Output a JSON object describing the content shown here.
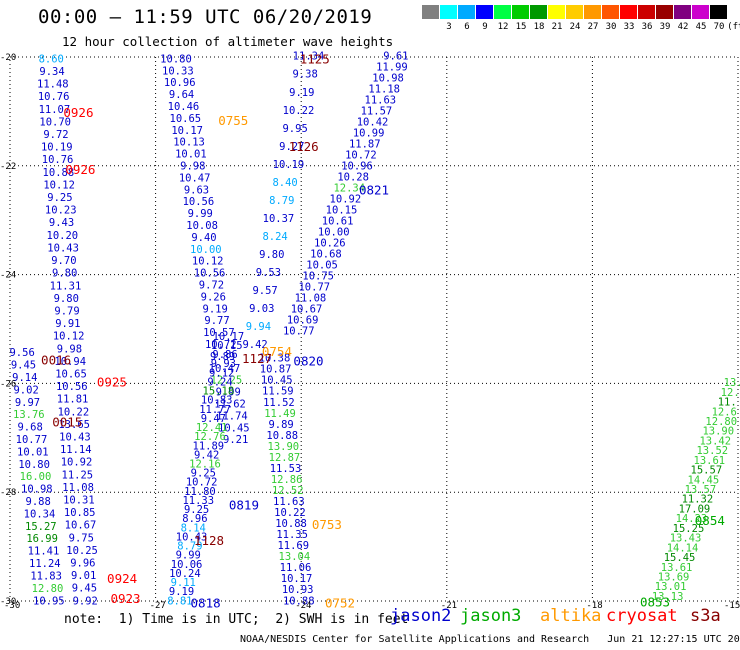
{
  "header": {
    "title": "00:00 – 11:59 UTC 06/20/2019",
    "subtitle": "12 hour collection of altimeter wave heights"
  },
  "color_scale": {
    "unit_label": "(ft)",
    "bins": [
      {
        "label": "",
        "color": "#808080"
      },
      {
        "label": "3",
        "color": "#00ffff"
      },
      {
        "label": "6",
        "color": "#00aaff"
      },
      {
        "label": "9",
        "color": "#0000ff"
      },
      {
        "label": "12",
        "color": "#00ff44"
      },
      {
        "label": "15",
        "color": "#00cc00"
      },
      {
        "label": "18",
        "color": "#009900"
      },
      {
        "label": "21",
        "color": "#ffff00"
      },
      {
        "label": "24",
        "color": "#ffcc00"
      },
      {
        "label": "27",
        "color": "#ff9900"
      },
      {
        "label": "30",
        "color": "#ff5500"
      },
      {
        "label": "33",
        "color": "#ff0000"
      },
      {
        "label": "36",
        "color": "#cc0000"
      },
      {
        "label": "39",
        "color": "#990000"
      },
      {
        "label": "42",
        "color": "#800080"
      },
      {
        "label": "45",
        "color": "#cc00cc"
      },
      {
        "label": "70",
        "color": "#000000"
      }
    ]
  },
  "axes": {
    "lat_labels": [
      "-20",
      "-22",
      "-24",
      "-26",
      "-28",
      "-30"
    ],
    "lon_labels": [
      "-30",
      "-27",
      "-24",
      "-21",
      "-18",
      "-15"
    ]
  },
  "colors": {
    "jason2": "#0000cc",
    "jason3": "#00aa00",
    "altika": "#ff9900",
    "cryosat": "#ff0000",
    "s3a": "#880000",
    "wave_blue": "#0000cc",
    "wave_cyan": "#00aaff",
    "wave_green": "#33cc33",
    "wave_dkgreen": "#008800"
  },
  "map": {
    "pass_labels": [
      {
        "text": "1125",
        "lon": -23.72,
        "lat": -20.05,
        "color": "s3a"
      },
      {
        "text": "0926",
        "lon": -28.59,
        "lat": -21.03,
        "color": "cryosat"
      },
      {
        "text": "0755",
        "lon": -25.4,
        "lat": -21.18,
        "color": "altika"
      },
      {
        "text": "1126",
        "lon": -23.95,
        "lat": -21.65,
        "color": "s3a"
      },
      {
        "text": "0926",
        "lon": -28.55,
        "lat": -22.08,
        "color": "cryosat"
      },
      {
        "text": "0821",
        "lon": -22.5,
        "lat": -22.45,
        "color": "jason2"
      },
      {
        "text": "0016",
        "lon": -29.05,
        "lat": -25.58,
        "color": "s3a"
      },
      {
        "text": "1127",
        "lon": -24.91,
        "lat": -25.55,
        "color": "s3a"
      },
      {
        "text": "0754",
        "lon": -24.5,
        "lat": -25.42,
        "color": "altika"
      },
      {
        "text": "0820",
        "lon": -23.85,
        "lat": -25.6,
        "color": "jason2"
      },
      {
        "text": "0925",
        "lon": -27.9,
        "lat": -25.98,
        "color": "cryosat"
      },
      {
        "text": "0015",
        "lon": -28.82,
        "lat": -26.72,
        "color": "s3a"
      },
      {
        "text": "0819",
        "lon": -25.18,
        "lat": -28.24,
        "color": "jason2"
      },
      {
        "text": "0753",
        "lon": -23.47,
        "lat": -28.6,
        "color": "altika"
      },
      {
        "text": "1128",
        "lon": -25.9,
        "lat": -28.9,
        "color": "s3a"
      },
      {
        "text": "0854",
        "lon": -15.58,
        "lat": -28.53,
        "color": "jason3"
      },
      {
        "text": "0924",
        "lon": -27.69,
        "lat": -29.6,
        "color": "cryosat"
      },
      {
        "text": "0923",
        "lon": -27.62,
        "lat": -29.96,
        "color": "cryosat"
      },
      {
        "text": "0818",
        "lon": -25.97,
        "lat": -30.05,
        "color": "jason2"
      },
      {
        "text": "0752",
        "lon": -23.2,
        "lat": -30.05,
        "color": "altika"
      },
      {
        "text": "0853",
        "lon": -16.71,
        "lat": -30.03,
        "color": "jason3"
      }
    ],
    "tracks": [
      {
        "id": "track-cryosat-west",
        "lon_start": -29.15,
        "lat_start": -20.1,
        "lon_end": -28.45,
        "lat_end": -30.06,
        "values": [
          "8.60",
          "9.34",
          "11.48",
          "10.76",
          "11.07",
          "10.70",
          "9.72",
          "10.19",
          "10.76",
          "10.88",
          "10.12",
          "9.25",
          "10.23",
          "9.43",
          "10.20",
          "10.43",
          "9.70",
          "9.80",
          "11.31",
          "9.80",
          "9.79",
          "9.91",
          "10.12",
          "9.98",
          "10.94",
          "10.65",
          "10.56",
          "11.81",
          "10.22",
          "13.65",
          "10.43",
          "11.14",
          "10.92",
          "11.25",
          "11.08",
          "10.31",
          "10.85",
          "10.67",
          "9.75",
          "10.25",
          "9.96",
          "9.01",
          "9.45",
          "9.92"
        ],
        "colors": {
          "0": "wave_cyan"
        }
      },
      {
        "id": "track-cryosat-west-b",
        "lon_start": -29.75,
        "lat_start": -25.5,
        "lon_end": -29.2,
        "lat_end": -30.06,
        "values": [
          "9.56",
          "9.45",
          "9.14",
          "9.02",
          "9.97",
          "13.76",
          "9.68",
          "10.77",
          "10.01",
          "10.80",
          "16.00",
          "10.98",
          "9.88",
          "10.34",
          "15.27",
          "16.99",
          "11.41",
          "11.24",
          "11.83",
          "12.80",
          "10.95"
        ],
        "colors": {
          "5": "wave_green",
          "10": "wave_green",
          "14": "wave_dkgreen",
          "15": "wave_dkgreen",
          "19": "wave_green"
        }
      },
      {
        "id": "track-s3a-central",
        "lon_start": -26.58,
        "lat_start": -20.1,
        "lon_end": -25.35,
        "lat_end": -27.1,
        "values": [
          "10.80",
          "10.33",
          "10.96",
          "9.64",
          "10.46",
          "10.65",
          "10.17",
          "10.13",
          "10.01",
          "9.98",
          "10.47",
          "9.63",
          "10.56",
          "9.99",
          "10.08",
          "9.40",
          "10.00",
          "10.12",
          "10.56",
          "9.72",
          "9.26",
          "9.19",
          "9.77",
          "10.57",
          "10.72",
          "9.89",
          "10.47",
          "12.25",
          "9.99",
          "11.62",
          "11.74",
          "10.45",
          "9.21"
        ],
        "colors": {
          "16": "wave_cyan",
          "27": "wave_green"
        }
      },
      {
        "id": "track-s3a-central-b",
        "lon_start": -25.5,
        "lat_start": -25.2,
        "lon_end": -26.5,
        "lat_end": -30.06,
        "values": [
          "10.17",
          "10.15",
          "9.86",
          "9.93",
          "9.12",
          "9.24",
          "15.18",
          "10.83",
          "11.77",
          "9.47",
          "12.41",
          "12.76",
          "11.89",
          "9.42",
          "12.16",
          "9.25",
          "10.72",
          "11.80",
          "11.33",
          "9.25",
          "8.96",
          "8.14",
          "10.43",
          "8.79",
          "9.99",
          "10.06",
          "10.24",
          "9.11",
          "9.19",
          "8.81"
        ],
        "colors": {
          "6": "wave_dkgreen",
          "10": "wave_green",
          "11": "wave_green",
          "14": "wave_green",
          "21": "wave_cyan",
          "23": "wave_cyan",
          "27": "wave_cyan",
          "29": "wave_cyan"
        }
      },
      {
        "id": "track-altika-center",
        "lon_start": -23.85,
        "lat_start": -20.05,
        "lon_end": -24.95,
        "lat_end": -25.35,
        "values": [
          "11.34",
          "9.38",
          "9.19",
          "10.22",
          "9.95",
          "9.27",
          "10.19",
          "8.40",
          "8.79",
          "10.37",
          "8.24",
          "9.80",
          "9.53",
          "9.57",
          "9.03",
          "9.94",
          "9.42"
        ],
        "colors": {
          "7": "wave_cyan",
          "8": "wave_cyan",
          "10": "wave_cyan",
          "15": "wave_cyan"
        }
      },
      {
        "id": "track-jason2-east",
        "lon_start": -22.05,
        "lat_start": -20.05,
        "lon_end": -24.05,
        "lat_end": -25.1,
        "values": [
          "9.61",
          "11.99",
          "10.98",
          "11.18",
          "11.63",
          "11.57",
          "10.42",
          "10.99",
          "11.87",
          "10.72",
          "10.96",
          "10.28",
          "12.34",
          "10.92",
          "10.15",
          "10.61",
          "10.00",
          "10.26",
          "10.68",
          "10.05",
          "10.75",
          "10.77",
          "11.08",
          "10.67",
          "10.69",
          "10.77"
        ],
        "colors": {
          "12": "wave_green"
        }
      },
      {
        "id": "track-jason2-south",
        "lon_start": -24.55,
        "lat_start": -25.6,
        "lon_end": -24.05,
        "lat_end": -30.06,
        "values": [
          "10.38",
          "10.87",
          "10.45",
          "11.59",
          "11.52",
          "11.49",
          "9.89",
          "10.88",
          "13.90",
          "12.87",
          "11.53",
          "12.86",
          "12.52",
          "11.63",
          "10.22",
          "10.88",
          "11.35",
          "11.69",
          "13.04",
          "11.06",
          "10.17",
          "10.93",
          "10.88"
        ],
        "colors": {
          "5": "wave_green",
          "8": "wave_green",
          "9": "wave_green",
          "11": "wave_green",
          "12": "wave_green",
          "18": "wave_green"
        }
      },
      {
        "id": "track-jason3-east",
        "lon_start": -15.1,
        "lat_start": -26.05,
        "lon_end": -16.45,
        "lat_end": -29.98,
        "values": [
          "13.",
          "12.",
          "11.",
          "12.6",
          "12.80",
          "13.90",
          "13.42",
          "13.52",
          "13.61",
          "15.57",
          "14.45",
          "13.57",
          "11.32",
          "17.09",
          "14.23",
          "15.25",
          "13.43",
          "14.14",
          "15.45",
          "13.61",
          "13.69",
          "13.01",
          "13.13"
        ],
        "colors": {
          "0": "wave_green",
          "1": "wave_green",
          "2": "wave_dkgreen",
          "3": "wave_green",
          "4": "wave_green",
          "5": "wave_green",
          "6": "wave_green",
          "7": "wave_green",
          "8": "wave_green",
          "9": "wave_dkgreen",
          "10": "wave_green",
          "11": "wave_green",
          "12": "wave_dkgreen",
          "13": "wave_dkgreen",
          "14": "wave_green",
          "15": "wave_dkgreen",
          "16": "wave_green",
          "17": "wave_green",
          "18": "wave_dkgreen",
          "19": "wave_green",
          "20": "wave_green",
          "21": "wave_green",
          "22": "wave_green"
        }
      }
    ]
  },
  "footer": {
    "note": "note:  1) Time is in UTC;  2) SWH is in feet",
    "missions": [
      {
        "text": "jason2",
        "color": "#0000cc"
      },
      {
        "text": "jason3",
        "color": "#00aa00"
      },
      {
        "text": "altika",
        "color": "#ff9900"
      },
      {
        "text": "cryosat",
        "color": "#ff0000"
      },
      {
        "text": "s3a",
        "color": "#880000"
      }
    ],
    "credit_left": "NOAA/NESDIS Center for Satellite Applications and Research",
    "credit_right": "Jun 21 12:27:15 UTC 2019"
  }
}
